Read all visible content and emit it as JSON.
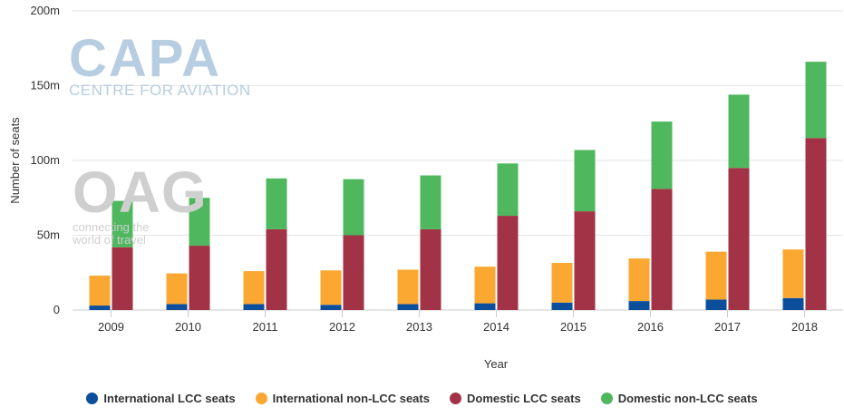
{
  "watermarks": {
    "capa_main": "CAPA",
    "capa_sub": "CENTRE FOR AVIATION",
    "oag_main": "OAG",
    "oag_sub_1": "connecting the",
    "oag_sub_2": "world of travel"
  },
  "chart_data": {
    "type": "bar",
    "stacking": "grouped-stacked",
    "xlabel": "Year",
    "ylabel": "Number of seats",
    "ylim": [
      0,
      200
    ],
    "yticks": [
      "0",
      "50m",
      "100m",
      "150m",
      "200m"
    ],
    "categories": [
      "2009",
      "2010",
      "2011",
      "2012",
      "2013",
      "2014",
      "2015",
      "2016",
      "2017",
      "2018"
    ],
    "grid": "horizontal",
    "legend_position": "bottom",
    "series": [
      {
        "name": "International LCC seats",
        "stack": "international",
        "color": "#0b4f9c",
        "values": [
          3,
          4,
          4,
          3.5,
          4,
          4.5,
          5,
          6,
          7,
          8
        ]
      },
      {
        "name": "International non-LCC seats",
        "stack": "international",
        "color": "#fba833",
        "values": [
          20,
          20.5,
          22,
          23,
          23,
          24.5,
          26.5,
          28.5,
          32,
          32.5
        ]
      },
      {
        "name": "Domestic LCC seats",
        "stack": "domestic",
        "color": "#a23245",
        "values": [
          42,
          43,
          54,
          50,
          54,
          63,
          66,
          81,
          95,
          115
        ]
      },
      {
        "name": "Domestic non-LCC seats",
        "stack": "domestic",
        "color": "#4fb85e",
        "values": [
          31,
          32,
          34,
          37.5,
          36,
          35,
          41,
          45,
          49,
          51
        ]
      }
    ]
  }
}
